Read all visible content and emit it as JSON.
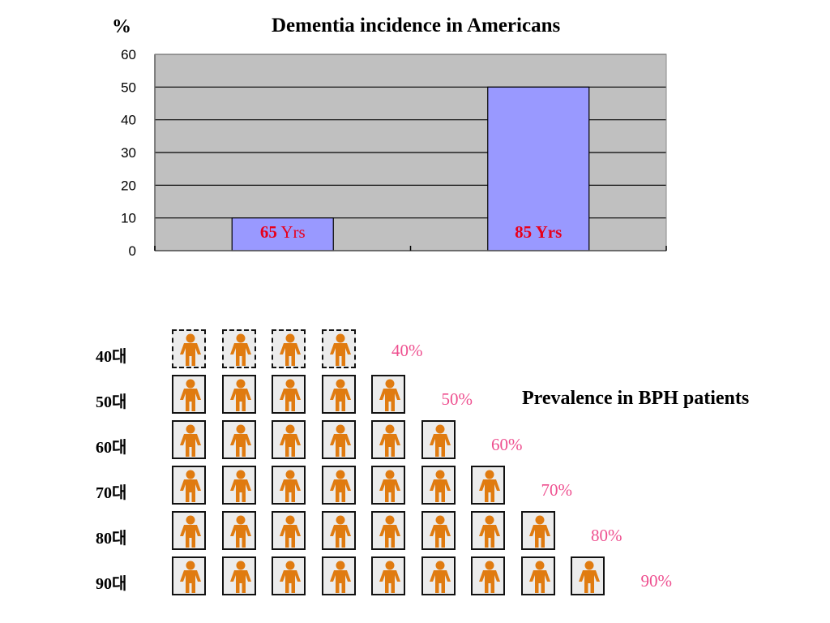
{
  "chart_data": {
    "type": "bar",
    "title": "Dementia incidence in Americans",
    "ylabel": "%",
    "ylim": [
      0,
      60
    ],
    "yticks": [
      "60",
      "50",
      "40",
      "30",
      "20",
      "10",
      "0"
    ],
    "categories": [
      "65 Yrs",
      "85 Yrs"
    ],
    "values": [
      10,
      50
    ],
    "bar_labels": [
      {
        "num": "65",
        "unit": "Yrs"
      },
      {
        "num": "85",
        "unit": "Yrs"
      }
    ],
    "grid": true,
    "colors": {
      "bar": "#9999ff",
      "plot_bg": "#c0c0c0",
      "label": "#e8001c"
    }
  },
  "bph": {
    "title": "Prevalence in BPH patients",
    "icon": "person-icon",
    "colors": {
      "person": "#e07b10",
      "percent": "#ee4f8f"
    },
    "rows": [
      {
        "label": "40대",
        "count": 4,
        "percent": "40%",
        "dashed": true
      },
      {
        "label": "50대",
        "count": 5,
        "percent": "50%",
        "dashed": false
      },
      {
        "label": "60대",
        "count": 6,
        "percent": "60%",
        "dashed": false
      },
      {
        "label": "70대",
        "count": 7,
        "percent": "70%",
        "dashed": false
      },
      {
        "label": "80대",
        "count": 8,
        "percent": "80%",
        "dashed": false
      },
      {
        "label": "90대",
        "count": 9,
        "percent": "90%",
        "dashed": false
      }
    ]
  }
}
